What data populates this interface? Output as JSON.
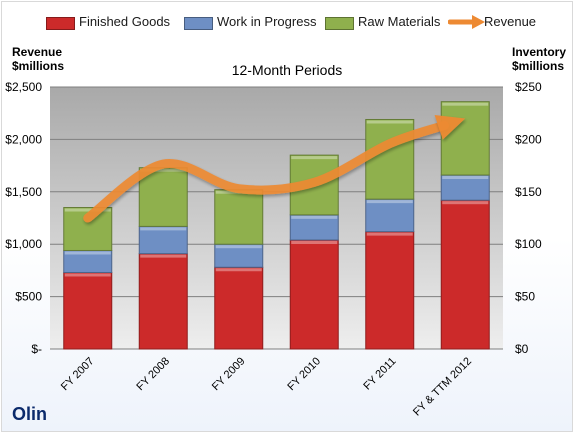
{
  "chart_data": {
    "type": "bar",
    "stacked": true,
    "title": "12-Month Periods",
    "company": "Olin",
    "categories": [
      "FY 2007",
      "FY 2008",
      "FY 2009",
      "FY 2010",
      "FY 2011",
      "FY & TTM 2012"
    ],
    "series": [
      {
        "name": "Finished Goods",
        "axis": "right",
        "color": "#cc2a2a",
        "values": [
          73,
          91,
          78,
          104,
          112,
          142
        ]
      },
      {
        "name": "Work in Progress",
        "axis": "right",
        "color": "#6e8fc4",
        "values": [
          21,
          26,
          22,
          24,
          31,
          24
        ]
      },
      {
        "name": "Raw Materials",
        "axis": "right",
        "color": "#8fb04d",
        "values": [
          41,
          56,
          52,
          57,
          76,
          70
        ]
      },
      {
        "name": "Revenue",
        "axis": "left",
        "type": "line",
        "color": "#ed8a33",
        "values": [
          1250,
          1765,
          1530,
          1590,
          1960,
          2200
        ]
      }
    ],
    "left_axis": {
      "title_line1": "Revenue",
      "title_line2": "$millions",
      "min": 0,
      "max": 2500,
      "ticks": [
        "$-",
        "$500",
        "$1,000",
        "$1,500",
        "$2,000",
        "$2,500"
      ]
    },
    "right_axis": {
      "title_line1": "Inventory",
      "title_line2": "$millions",
      "min": 0,
      "max": 250,
      "ticks": [
        "$0",
        "$50",
        "$100",
        "$150",
        "$200",
        "$250"
      ]
    },
    "legend_position": "top",
    "grid": true
  }
}
